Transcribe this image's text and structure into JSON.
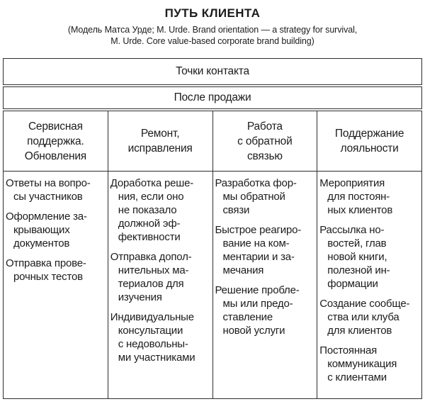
{
  "title": "ПУТЬ КЛИЕНТА",
  "subtitle": {
    "line1": "(Модель Матса Урде; M. Urde. Brand orientation — a strategy for survival,",
    "line2": "M. Urde. Core value-based corporate brand building)"
  },
  "banners": {
    "contact_points": "Точки контакта",
    "after_sale": "После продажи"
  },
  "colors": {
    "background": "#ffffff",
    "text": "#1c1c1c",
    "border": "#2e2e2e"
  },
  "table": {
    "columns": [
      {
        "header": "Сервисная\nподдержка.\nОбновления",
        "items": [
          "Ответы на вопро-\nсы участников",
          "Оформление за-\nкрывающих\nдокументов",
          "Отправка прове-\nрочных тестов"
        ]
      },
      {
        "header": "Ремонт,\nисправления",
        "items": [
          "Доработка реше-\nния, если оно\nне показало\nдолжной эф-\nфективности",
          "Отправка допол-\nнительных ма-\nтериалов для\nизучения",
          "Индивидуальные\nконсультации\nс недовольны-\nми участниками"
        ]
      },
      {
        "header": "Работа\nс обратной\nсвязью",
        "items": [
          "Разработка фор-\nмы обратной\nсвязи",
          "Быстрое реагиро-\nвание на ком-\nментарии и за-\nмечания",
          "Решение пробле-\nмы или предо-\nставление\nновой услуги"
        ]
      },
      {
        "header": "Поддержание\nлояльности",
        "items": [
          "Мероприятия\nдля постоян-\nных клиентов",
          "Рассылка но-\nвостей, глав\nновой книги,\nполезной ин-\nформации",
          "Создание сообще-\nства или клуба\nдля клиентов",
          "Постоянная\nкоммуникация\nс клиентами"
        ]
      }
    ]
  }
}
